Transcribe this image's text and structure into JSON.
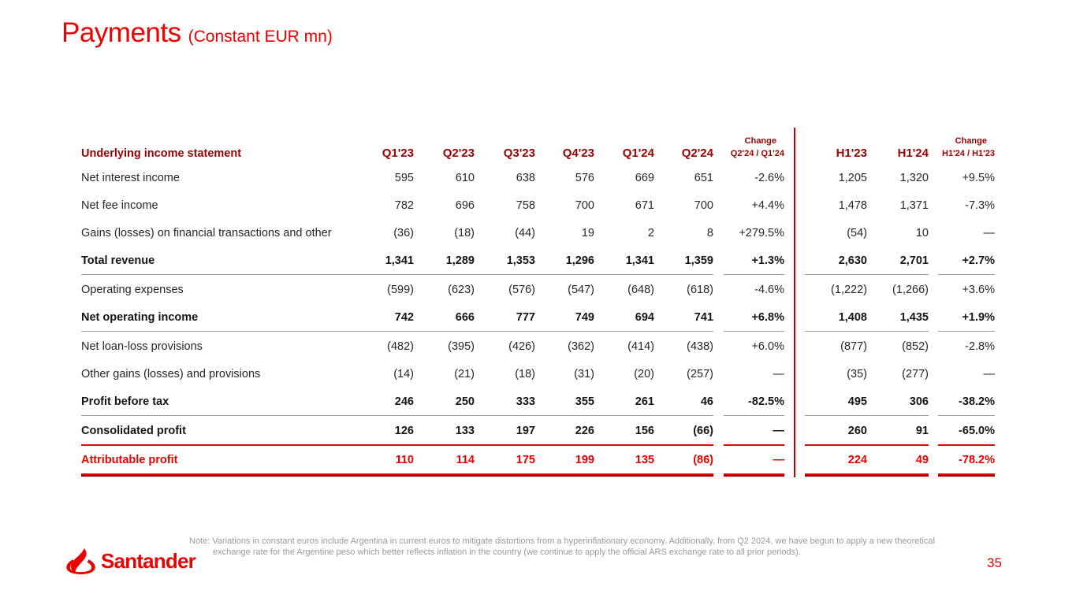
{
  "title": {
    "main": "Payments",
    "subtitle": "(Constant EUR mn)"
  },
  "table": {
    "header_label": "Underlying income statement",
    "quarter_cols": [
      "Q1'23",
      "Q2'23",
      "Q3'23",
      "Q4'23",
      "Q1'24",
      "Q2'24"
    ],
    "change_label": "Change",
    "qoq_change_col": "Q2'24 / Q1'24",
    "half_cols": [
      "H1'23",
      "H1'24"
    ],
    "hoh_change_col": "H1'24 / H1'23",
    "rows": [
      {
        "label": "Net interest income",
        "style": "normal",
        "separator_after": "",
        "q": [
          "595",
          "610",
          "638",
          "576",
          "669",
          "651"
        ],
        "qoq": "-2.6%",
        "h": [
          "1,205",
          "1,320"
        ],
        "hoh": "+9.5%"
      },
      {
        "label": "Net fee income",
        "style": "normal",
        "separator_after": "",
        "q": [
          "782",
          "696",
          "758",
          "700",
          "671",
          "700"
        ],
        "qoq": "+4.4%",
        "h": [
          "1,478",
          "1,371"
        ],
        "hoh": "-7.3%"
      },
      {
        "label": "Gains (losses) on financial transactions and other",
        "style": "normal",
        "separator_after": "",
        "q": [
          "(36)",
          "(18)",
          "(44)",
          "19",
          "2",
          "8"
        ],
        "qoq": "+279.5%",
        "h": [
          "(54)",
          "10"
        ],
        "hoh": "—"
      },
      {
        "label": "Total revenue",
        "style": "bold",
        "separator_after": "gray",
        "q": [
          "1,341",
          "1,289",
          "1,353",
          "1,296",
          "1,341",
          "1,359"
        ],
        "qoq": "+1.3%",
        "h": [
          "2,630",
          "2,701"
        ],
        "hoh": "+2.7%"
      },
      {
        "label": "Operating expenses",
        "style": "normal",
        "separator_after": "",
        "q": [
          "(599)",
          "(623)",
          "(576)",
          "(547)",
          "(648)",
          "(618)"
        ],
        "qoq": "-4.6%",
        "h": [
          "(1,222)",
          "(1,266)"
        ],
        "hoh": "+3.6%"
      },
      {
        "label": "Net operating income",
        "style": "bold",
        "separator_after": "gray",
        "q": [
          "742",
          "666",
          "777",
          "749",
          "694",
          "741"
        ],
        "qoq": "+6.8%",
        "h": [
          "1,408",
          "1,435"
        ],
        "hoh": "+1.9%"
      },
      {
        "label": "Net loan-loss provisions",
        "style": "normal",
        "separator_after": "",
        "q": [
          "(482)",
          "(395)",
          "(426)",
          "(362)",
          "(414)",
          "(438)"
        ],
        "qoq": "+6.0%",
        "h": [
          "(877)",
          "(852)"
        ],
        "hoh": "-2.8%"
      },
      {
        "label": "Other gains (losses) and provisions",
        "style": "normal",
        "separator_after": "",
        "q": [
          "(14)",
          "(21)",
          "(18)",
          "(31)",
          "(20)",
          "(257)"
        ],
        "qoq": "—",
        "h": [
          "(35)",
          "(277)"
        ],
        "hoh": "—"
      },
      {
        "label": "Profit before tax",
        "style": "bold",
        "separator_after": "gray",
        "q": [
          "246",
          "250",
          "333",
          "355",
          "261",
          "46"
        ],
        "qoq": "-82.5%",
        "h": [
          "495",
          "306"
        ],
        "hoh": "-38.2%"
      },
      {
        "label": "Consolidated profit",
        "style": "bold",
        "separator_after": "red",
        "q": [
          "126",
          "133",
          "197",
          "226",
          "156",
          "(66)"
        ],
        "qoq": "—",
        "h": [
          "260",
          "91"
        ],
        "hoh": "-65.0%"
      },
      {
        "label": "Attributable profit",
        "style": "red-bold",
        "separator_after": "red",
        "q": [
          "110",
          "114",
          "175",
          "199",
          "135",
          "(86)"
        ],
        "qoq": "—",
        "h": [
          "224",
          "49"
        ],
        "hoh": "-78.2%"
      }
    ]
  },
  "footer": {
    "note_label": "Note:",
    "note_text": "Variations in constant euros include Argentina in current euros to mitigate distortions from a hyperinflationary economy. Additionally, from Q2 2024, we have begun to apply a new theoretical exchange rate for the Argentine peso which better reflects inflation in the country (we continue to apply the official ARS exchange rate to all prior periods).",
    "logo_wordmark": "Santander",
    "page_number": "35"
  },
  "colors": {
    "brand_red": "#EC0000",
    "dark_red": "#990000",
    "divider_red": "#C00000",
    "separator_gray": "#9B9B9B",
    "text_dark": "#262626",
    "note_gray": "#999999"
  }
}
